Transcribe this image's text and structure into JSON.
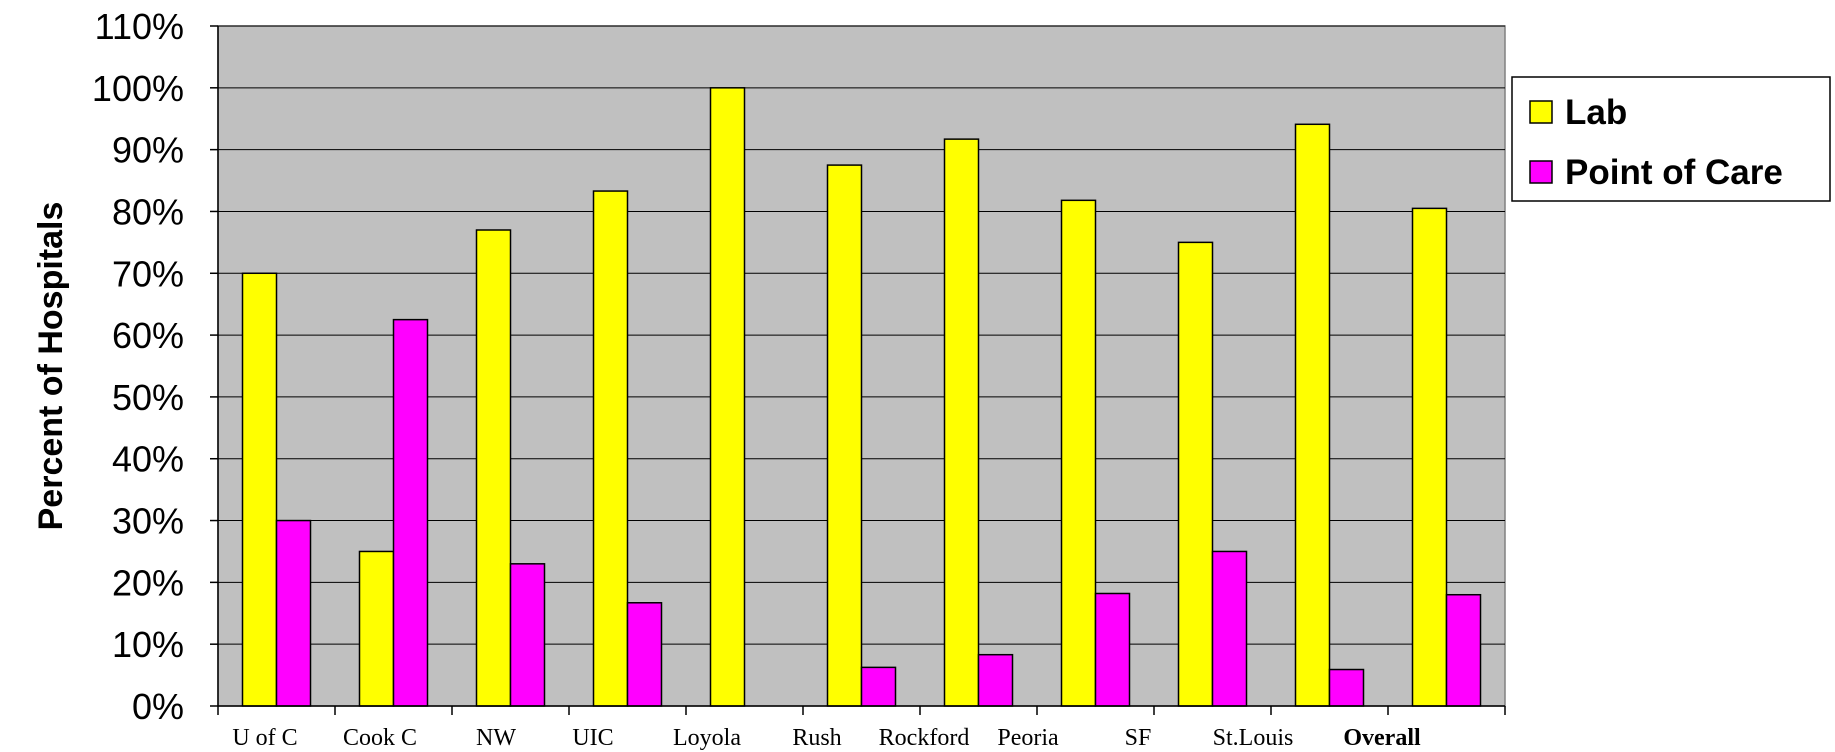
{
  "chart_data": {
    "type": "bar",
    "title": "",
    "xlabel": "",
    "ylabel": "Percent of Hospitals",
    "ylim": [
      0,
      110
    ],
    "yticks": [
      "0%",
      "10%",
      "20%",
      "30%",
      "40%",
      "50%",
      "60%",
      "70%",
      "80%",
      "90%",
      "100%",
      "110%"
    ],
    "categories": [
      "U of C",
      "Cook C",
      "NW",
      "UIC",
      "Loyola",
      "Rush",
      "Rockford",
      "Peoria",
      "SF",
      "St.Louis",
      "Overall"
    ],
    "bold_categories": [
      "Overall"
    ],
    "series": [
      {
        "name": "Lab",
        "color": "#ffff00",
        "values": [
          70,
          25,
          77,
          83.3,
          100,
          87.5,
          91.7,
          81.8,
          75,
          94.1,
          80.5
        ]
      },
      {
        "name": "Point of Care",
        "color": "#ff00ff",
        "values": [
          30,
          62.5,
          23,
          16.7,
          0,
          6.25,
          8.3,
          18.2,
          25,
          5.9,
          18
        ]
      }
    ],
    "grid": true,
    "plot_background": "#c0c0c0",
    "legend_position": "right"
  }
}
